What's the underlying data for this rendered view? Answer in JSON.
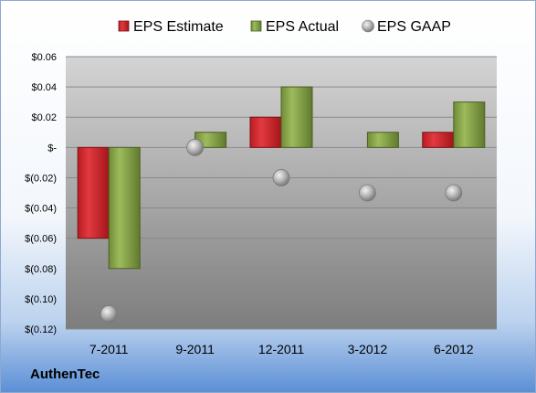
{
  "company": "AuthenTec",
  "chart_data": {
    "type": "bar",
    "categories": [
      "7-2011",
      "9-2011",
      "12-2011",
      "3-2012",
      "6-2012"
    ],
    "series": [
      {
        "name": "EPS Estimate",
        "kind": "bar",
        "color": "#d9232b",
        "values": [
          -0.06,
          null,
          0.02,
          null,
          0.01
        ]
      },
      {
        "name": "EPS Actual",
        "kind": "bar",
        "color": "#8aa84b",
        "values": [
          -0.08,
          0.01,
          0.04,
          0.01,
          0.03
        ]
      },
      {
        "name": "EPS GAAP",
        "kind": "marker",
        "color": "#a6a6a6",
        "values": [
          -0.11,
          0.0,
          -0.02,
          -0.03,
          -0.03
        ]
      }
    ],
    "ylim": [
      -0.12,
      0.06
    ],
    "yticks": [
      0.06,
      0.04,
      0.02,
      0,
      -0.02,
      -0.04,
      -0.06,
      -0.08,
      -0.1,
      -0.12
    ],
    "ytick_labels": [
      "$0.06",
      "$0.04",
      "$0.02",
      "$-",
      "$(0.02)",
      "$(0.04)",
      "$(0.06)",
      "$(0.08)",
      "$(0.10)",
      "$(0.12)"
    ],
    "grid": true,
    "legend": "top"
  }
}
